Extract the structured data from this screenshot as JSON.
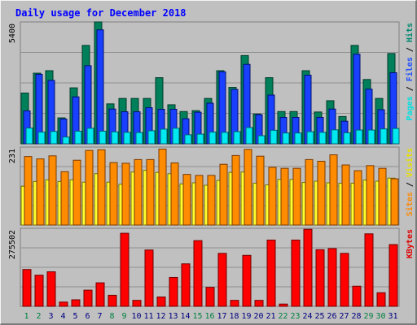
{
  "chart_data": {
    "type": "bar",
    "title": "Daily usage for December 2018",
    "categories": [
      "1",
      "2",
      "3",
      "4",
      "5",
      "6",
      "7",
      "8",
      "9",
      "10",
      "11",
      "12",
      "13",
      "14",
      "15",
      "16",
      "17",
      "18",
      "19",
      "20",
      "21",
      "22",
      "23",
      "24",
      "25",
      "26",
      "27",
      "28",
      "29",
      "30",
      "31"
    ],
    "weekend_days": [
      "1",
      "2",
      "8",
      "9",
      "15",
      "16",
      "22",
      "23",
      "29",
      "30"
    ],
    "panels": [
      {
        "name": "top",
        "max_label": "5400",
        "ymax": 5400,
        "legend": [
          {
            "text": "Pages",
            "color": "#00e0e0"
          },
          {
            "text": " / ",
            "color": "#000000"
          },
          {
            "text": "Files",
            "color": "#2050ff"
          },
          {
            "text": " / ",
            "color": "#000000"
          },
          {
            "text": "Hits",
            "color": "#008870"
          }
        ],
        "series": [
          {
            "name": "Hits",
            "color": "#00805a",
            "values": [
              2250,
              3130,
              3240,
              1150,
              2480,
              4360,
              5400,
              1770,
              2010,
              2010,
              2010,
              2930,
              1730,
              1430,
              1470,
              2010,
              3240,
              2500,
              3910,
              1320,
              2930,
              1430,
              1430,
              3240,
              1410,
              1910,
              1210,
              4360,
              2850,
              2010,
              4000
            ]
          },
          {
            "name": "Files",
            "color": "#1a40ff",
            "values": [
              1460,
              3080,
              2810,
              1100,
              2080,
              3460,
              5050,
              1540,
              1420,
              1420,
              1600,
              1530,
              1530,
              1110,
              1400,
              1800,
              3190,
              2410,
              3520,
              1290,
              2160,
              1170,
              1170,
              3040,
              1170,
              1540,
              1000,
              3970,
              2420,
              1510,
              3150
            ]
          },
          {
            "name": "Pages",
            "color": "#00e8f0",
            "values": [
              700,
              520,
              550,
              300,
              560,
              690,
              560,
              530,
              510,
              500,
              580,
              650,
              690,
              400,
              430,
              520,
              510,
              540,
              720,
              360,
              600,
              480,
              480,
              540,
              510,
              620,
              490,
              610,
              610,
              660,
              680
            ]
          }
        ]
      },
      {
        "name": "middle",
        "max_label": "231",
        "ymax": 231,
        "legend": [
          {
            "text": "Sites",
            "color": "#ff8800"
          },
          {
            "text": " / ",
            "color": "#000000"
          },
          {
            "text": "Visits",
            "color": "#e8e000"
          }
        ],
        "series": [
          {
            "name": "Visits",
            "color": "#ffff30",
            "values": [
              115,
              129,
              134,
              129,
              134,
              127,
              152,
              127,
              121,
              157,
              162,
              156,
              152,
              122,
              125,
              118,
              132,
              156,
              157,
              124,
              119,
              135,
              135,
              126,
              130,
              125,
              124,
              124,
              133,
              130,
              139
            ]
          },
          {
            "name": "Sites",
            "color": "#ff8c00",
            "values": [
              203,
              196,
              205,
              158,
              192,
              221,
              223,
              185,
              183,
              194,
              194,
              225,
              184,
              150,
              147,
              147,
              180,
              206,
              224,
              204,
              171,
              168,
              168,
              194,
              189,
              208,
              178,
              161,
              176,
              168,
              137
            ]
          }
        ]
      },
      {
        "name": "bottom",
        "max_label": "275502",
        "ymax": 275502,
        "legend": [
          {
            "text": "KBytes",
            "color": "#e00000"
          }
        ],
        "series": [
          {
            "name": "KBytes",
            "color": "#ff0000",
            "values": [
              130000,
              110000,
              122000,
              15000,
              23000,
              57000,
              83000,
              39000,
              258000,
              21000,
              199000,
              33000,
              102000,
              150000,
              232000,
              67000,
              187000,
              21000,
              180000,
              21000,
              234000,
              8000,
              234000,
              272000,
              200000,
              204000,
              187000,
              71000,
              256000,
              48000,
              218000
            ]
          }
        ]
      }
    ]
  }
}
